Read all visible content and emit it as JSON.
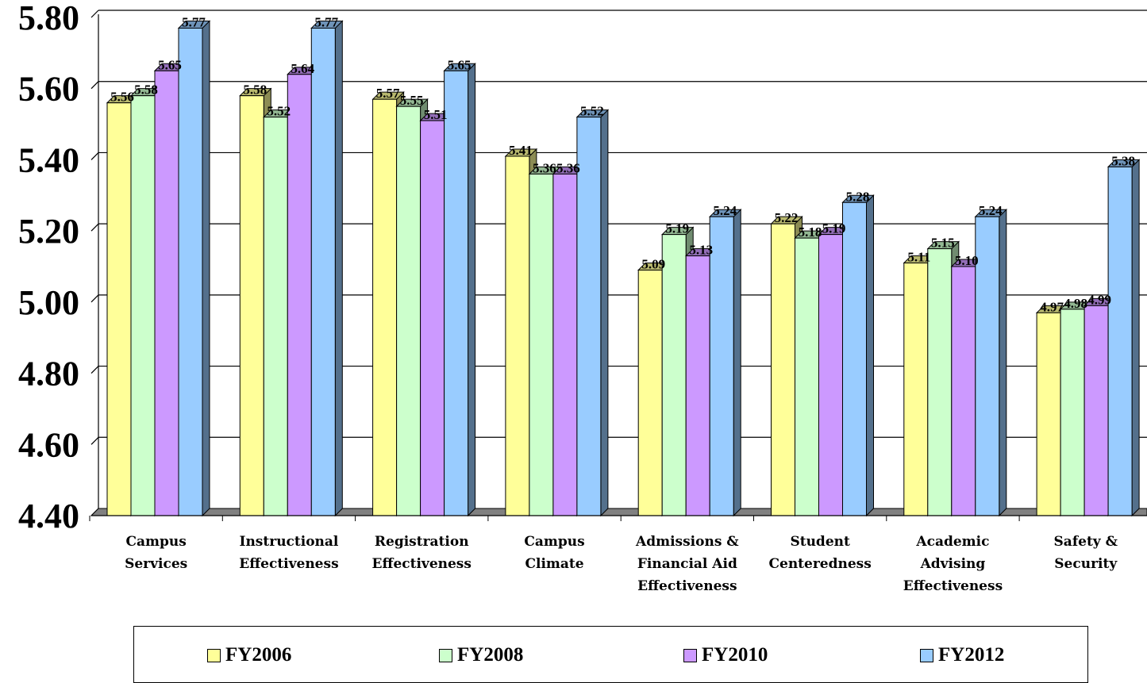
{
  "chart_data": {
    "type": "bar",
    "categories": [
      [
        "Campus",
        "Services"
      ],
      [
        "Instructional",
        "Effectiveness"
      ],
      [
        "Registration",
        "Effectiveness"
      ],
      [
        "Campus",
        "Climate"
      ],
      [
        "Admissions &",
        "Financial Aid",
        "Effectiveness"
      ],
      [
        "Student",
        "Centeredness"
      ],
      [
        "Academic",
        "Advising",
        "Effectiveness"
      ],
      [
        "Safety &",
        "Security"
      ]
    ],
    "series": [
      {
        "name": "FY2006",
        "color": "#ffff99",
        "values": [
          5.56,
          5.58,
          5.57,
          5.41,
          5.09,
          5.22,
          5.11,
          4.97
        ]
      },
      {
        "name": "FY2008",
        "color": "#ccffcc",
        "values": [
          5.58,
          5.52,
          5.55,
          5.36,
          5.19,
          5.18,
          5.15,
          4.98
        ]
      },
      {
        "name": "FY2010",
        "color": "#cc99ff",
        "values": [
          5.65,
          5.64,
          5.51,
          5.36,
          5.13,
          5.19,
          5.1,
          4.99
        ]
      },
      {
        "name": "FY2012",
        "color": "#99ccff",
        "values": [
          5.77,
          5.77,
          5.65,
          5.52,
          5.24,
          5.28,
          5.24,
          5.38
        ]
      }
    ],
    "y_ticks": [
      "4.40",
      "4.60",
      "4.80",
      "5.00",
      "5.20",
      "5.40",
      "5.60",
      "5.80"
    ],
    "ylim": [
      4.4,
      5.8
    ],
    "grid": true,
    "legend_position": "bottom",
    "title": "",
    "xlabel": "",
    "ylabel": ""
  }
}
